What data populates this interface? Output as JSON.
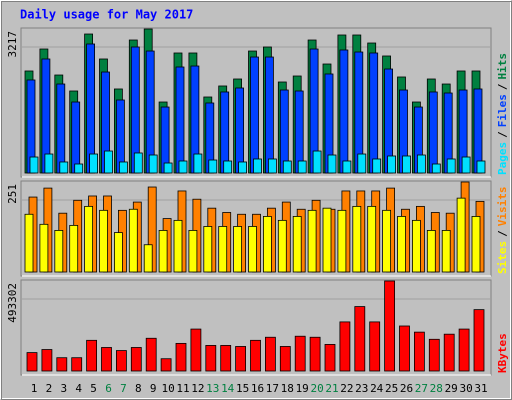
{
  "chart_data": [
    {
      "type": "bar",
      "title": "Daily usage for May 2017",
      "title_color": "#0000ff",
      "ylim": [
        0,
        3217
      ],
      "yticks": [
        3217
      ],
      "legend_separator": "/",
      "separator_color": "#000000",
      "series": [
        {
          "name": "Pages",
          "color": "#00e0ff",
          "values": [
            357,
            424,
            246,
            201,
            424,
            491,
            246,
            447,
            402,
            223,
            268,
            424,
            290,
            268,
            246,
            313,
            313,
            268,
            268,
            491,
            402,
            268,
            424,
            313,
            380,
            380,
            402,
            201,
            313,
            357,
            268
          ]
        },
        {
          "name": "Files",
          "color": "#0040ff",
          "values": [
            2078,
            2547,
            1988,
            1586,
            2882,
            2256,
            1631,
            2815,
            2725,
            1474,
            2368,
            2390,
            1564,
            1810,
            1899,
            2591,
            2591,
            1854,
            1832,
            2770,
            2212,
            2748,
            2703,
            2681,
            2323,
            1854,
            1474,
            1810,
            1787,
            1854,
            1877
          ]
        },
        {
          "name": "Hits",
          "color": "#008040",
          "values": [
            2279,
            2770,
            2189,
            1832,
            3105,
            2547,
            1877,
            2971,
            3217,
            1586,
            2681,
            2681,
            1698,
            1944,
            2100,
            2725,
            2815,
            2033,
            2167,
            2971,
            2435,
            3083,
            3083,
            2904,
            2614,
            2145,
            1586,
            2100,
            1988,
            2279,
            2279
          ]
        }
      ]
    },
    {
      "type": "bar",
      "ylim": [
        0,
        251
      ],
      "yticks": [
        251
      ],
      "legend_separator": "/",
      "separator_color": "#000000",
      "series": [
        {
          "name": "Sites",
          "color": "#ffff00",
          "values": [
            161,
            133,
            116,
            130,
            183,
            172,
            110,
            175,
            76,
            116,
            144,
            116,
            127,
            127,
            127,
            127,
            155,
            144,
            155,
            172,
            178,
            172,
            183,
            183,
            172,
            155,
            144,
            116,
            116,
            206,
            155
          ]
        },
        {
          "name": "Visits",
          "color": "#ff8000",
          "values": [
            209,
            234,
            164,
            200,
            212,
            212,
            172,
            195,
            237,
            149,
            226,
            203,
            178,
            166,
            161,
            161,
            178,
            195,
            175,
            200,
            175,
            226,
            226,
            226,
            234,
            175,
            183,
            166,
            164,
            251,
            197
          ]
        }
      ]
    },
    {
      "type": "bar",
      "ylim": [
        0,
        493302
      ],
      "yticks": [
        493302
      ],
      "categories": [
        "1",
        "2",
        "3",
        "4",
        "5",
        "6",
        "7",
        "8",
        "9",
        "10",
        "11",
        "12",
        "13",
        "14",
        "15",
        "16",
        "17",
        "18",
        "19",
        "20",
        "21",
        "22",
        "23",
        "24",
        "25",
        "26",
        "27",
        "28",
        "29",
        "30",
        "31"
      ],
      "category_colors": [
        "#000000",
        "#000000",
        "#000000",
        "#000000",
        "#000000",
        "#008040",
        "#008040",
        "#000000",
        "#000000",
        "#000000",
        "#000000",
        "#000000",
        "#008040",
        "#008040",
        "#000000",
        "#000000",
        "#000000",
        "#000000",
        "#000000",
        "#008040",
        "#008040",
        "#000000",
        "#000000",
        "#000000",
        "#000000",
        "#000000",
        "#008040",
        "#008040",
        "#000000",
        "#000000",
        "#000000"
      ],
      "series": [
        {
          "name": "KBytes",
          "color": "#ff0000",
          "values": [
            100908,
            117726,
            72878,
            72878,
            168180,
            128938,
            112120,
            128938,
            179392,
            67272,
            151362,
            229846,
            140150,
            140150,
            134544,
            168180,
            184998,
            134544,
            190604,
            184998,
            145756,
            269088,
            353178,
            269088,
            493302,
            246664,
            213028,
            173786,
            201816,
            229846,
            336360
          ]
        }
      ]
    }
  ]
}
